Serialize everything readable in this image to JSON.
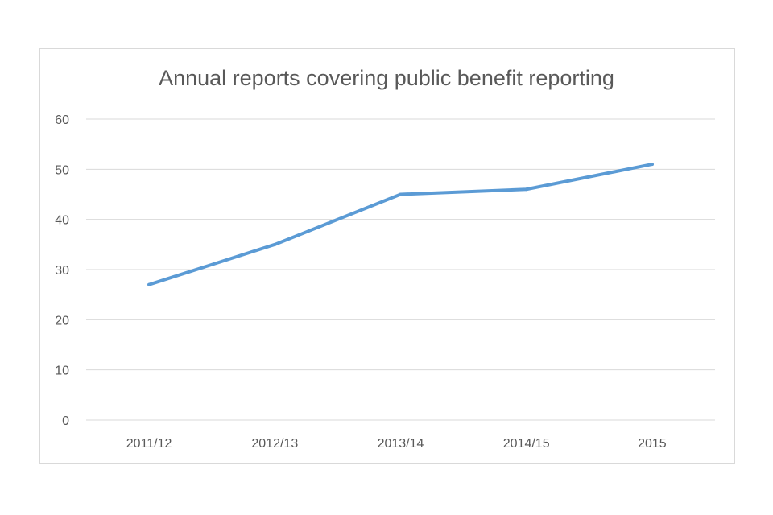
{
  "chart_data": {
    "type": "line",
    "title": "Annual reports covering public benefit reporting",
    "xlabel": "",
    "ylabel": "",
    "categories": [
      "2011/12",
      "2012/13",
      "2013/14",
      "2014/15",
      "2015"
    ],
    "series": [
      {
        "name": "Annual reports",
        "values": [
          27,
          35,
          45,
          46,
          51
        ],
        "color": "#5b9bd5"
      }
    ],
    "ylim": [
      0,
      60
    ],
    "yticks": [
      0,
      10,
      20,
      30,
      40,
      50,
      60
    ],
    "grid": true,
    "legend": "none"
  }
}
